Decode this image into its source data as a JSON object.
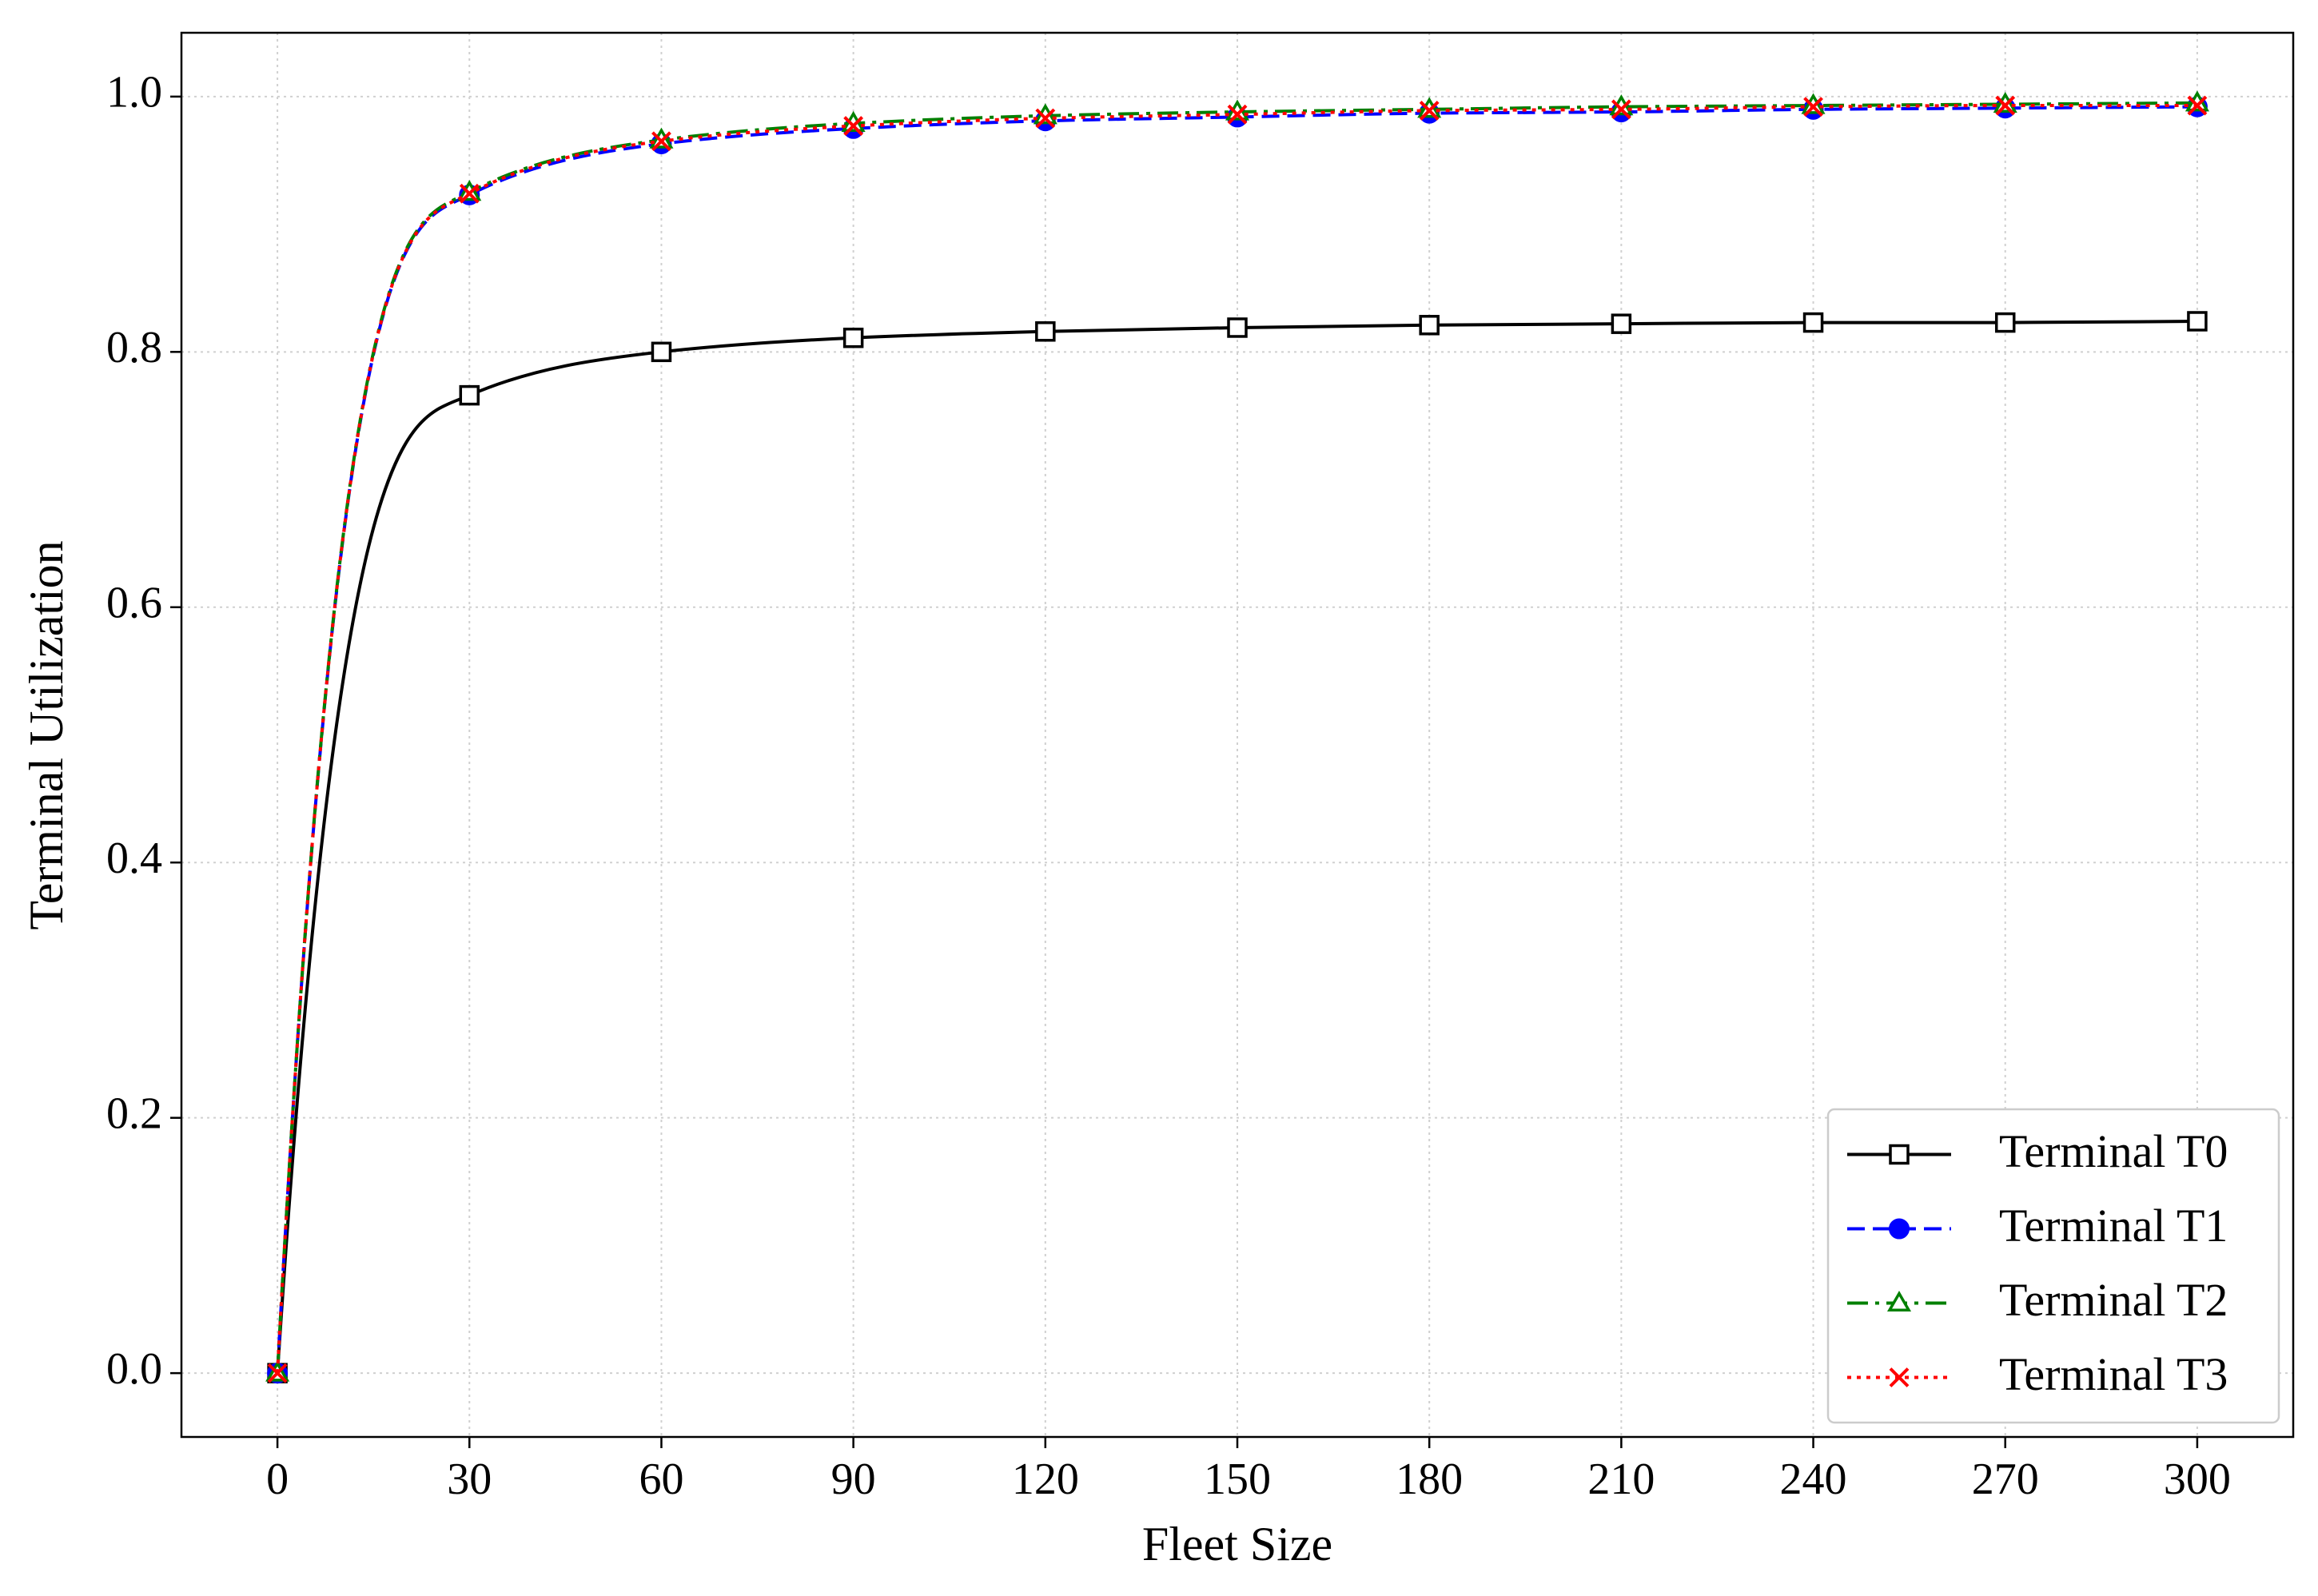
{
  "chart_data": {
    "type": "line",
    "x_label": "Fleet Size",
    "y_label": "Terminal Utilization",
    "x": [
      0,
      30,
      60,
      90,
      120,
      150,
      180,
      210,
      240,
      270,
      300
    ],
    "series": [
      {
        "name": "Terminal T0",
        "color": "#000000",
        "dash": "solid",
        "marker": "square",
        "values": [
          0,
          0.766,
          0.8,
          0.811,
          0.816,
          0.819,
          0.821,
          0.822,
          0.823,
          0.823,
          0.824
        ]
      },
      {
        "name": "Terminal T1",
        "color": "#0000ff",
        "dash": "dashed",
        "marker": "circle",
        "values": [
          0,
          0.923,
          0.963,
          0.975,
          0.981,
          0.984,
          0.987,
          0.988,
          0.99,
          0.991,
          0.992
        ]
      },
      {
        "name": "Terminal T2",
        "color": "#008000",
        "dash": "dashdot",
        "marker": "triangle",
        "values": [
          0,
          0.925,
          0.966,
          0.979,
          0.985,
          0.988,
          0.99,
          0.992,
          0.993,
          0.994,
          0.995
        ]
      },
      {
        "name": "Terminal T3",
        "color": "#ff0000",
        "dash": "dotted",
        "marker": "x",
        "values": [
          0,
          0.924,
          0.965,
          0.977,
          0.983,
          0.986,
          0.989,
          0.99,
          0.992,
          0.993,
          0.993
        ]
      }
    ],
    "xlim": [
      -15,
      315
    ],
    "xticks": [
      0,
      30,
      60,
      90,
      120,
      150,
      180,
      210,
      240,
      270,
      300
    ],
    "ylim": [
      -0.05,
      1.05
    ],
    "yticks": [
      {
        "value": 0,
        "label": "0.0"
      },
      0.2,
      0.4,
      0.6,
      0.8,
      {
        "value": 1,
        "label": "1.0"
      }
    ],
    "grid": true,
    "legend": "lower right"
  }
}
